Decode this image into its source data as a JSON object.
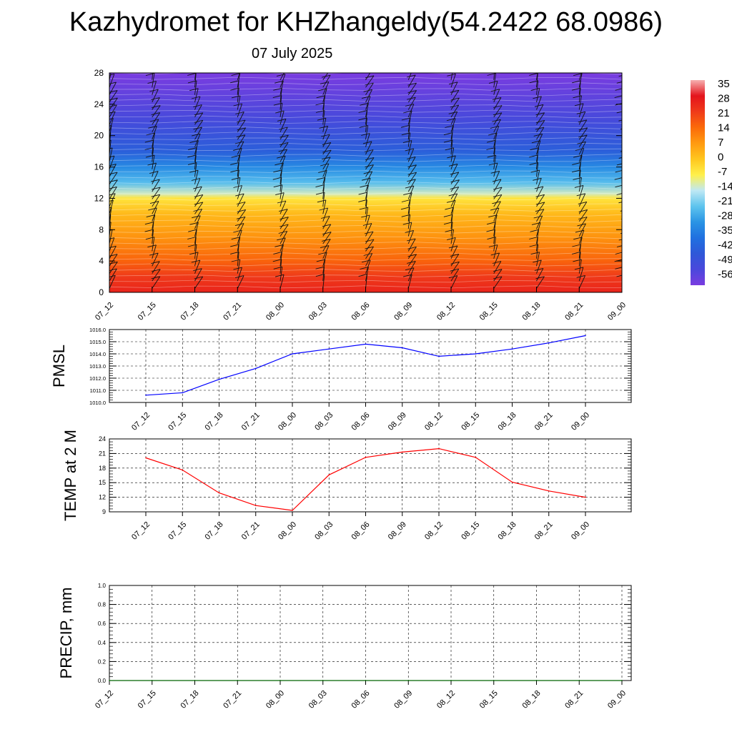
{
  "title": "Kazhydromet for KHZhangeldy(54.2422 68.0986)",
  "subtitle": "07 July 2025",
  "time_labels": [
    "07_12",
    "07_15",
    "07_18",
    "07_21",
    "08_00",
    "08_03",
    "08_06",
    "08_09",
    "08_12",
    "08_15",
    "08_18",
    "08_21",
    "09_00"
  ],
  "colors": {
    "pmsl_line": "#0000ff",
    "temp_line": "#ff0000",
    "precip_line": "#006400",
    "grid": "#000000"
  },
  "chart_data": [
    {
      "type": "heatmap",
      "title": "",
      "ylabel": "",
      "ylim": [
        0,
        28
      ],
      "yticks": [
        "0",
        "4",
        "8",
        "12",
        "16",
        "20",
        "24",
        "28"
      ],
      "categories": [
        "07_12",
        "07_15",
        "07_18",
        "07_21",
        "08_00",
        "08_03",
        "08_06",
        "08_09",
        "08_12",
        "08_15",
        "08_18",
        "08_21",
        "09_00"
      ],
      "colorbar": {
        "labels": [
          "35",
          "28",
          "21",
          "14",
          "7",
          "0",
          "-7",
          "-14",
          "-21",
          "-28",
          "-35",
          "-42",
          "-49",
          "-56"
        ],
        "colors": [
          "#f6b0b0",
          "#e4141c",
          "#ef3a1a",
          "#fb6a0a",
          "#ff9a10",
          "#ffc61e",
          "#fff04a",
          "#bfe8f4",
          "#5ec4ee",
          "#2a94e4",
          "#2070e0",
          "#2f58d8",
          "#4a48dc",
          "#7a3ce0"
        ]
      },
      "profile": [
        {
          "level": 0,
          "value": 25
        },
        {
          "level": 2,
          "value": 21
        },
        {
          "level": 4,
          "value": 15
        },
        {
          "level": 7,
          "value": 8
        },
        {
          "level": 10,
          "value": 2
        },
        {
          "level": 12,
          "value": -5
        },
        {
          "level": 12.6,
          "value": -12
        },
        {
          "level": 14,
          "value": -22
        },
        {
          "level": 16,
          "value": -30
        },
        {
          "level": 18,
          "value": -40
        },
        {
          "level": 22,
          "value": -48
        },
        {
          "level": 28,
          "value": -56
        }
      ]
    },
    {
      "type": "line",
      "ylabel": "PMSL",
      "ylim": [
        1010,
        1016
      ],
      "yticks": [
        "1010.0",
        "1011.0",
        "1012.0",
        "1013.0",
        "1014.0",
        "1015.0",
        "1016.0"
      ],
      "categories": [
        "07_12",
        "07_15",
        "07_18",
        "07_21",
        "08_00",
        "08_03",
        "08_06",
        "08_09",
        "08_12",
        "08_15",
        "08_18",
        "08_21",
        "09_00"
      ],
      "series": [
        {
          "values": [
            1010.6,
            1010.8,
            1011.9,
            1012.8,
            1014.0,
            1014.4,
            1014.8,
            1014.5,
            1013.8,
            1014.0,
            1014.4,
            1014.9,
            1015.5
          ]
        }
      ]
    },
    {
      "type": "line",
      "ylabel": "TEMP at 2 M",
      "ylim": [
        9,
        24
      ],
      "yticks": [
        "9",
        "12",
        "15",
        "18",
        "21",
        "24"
      ],
      "categories": [
        "07_12",
        "07_15",
        "07_18",
        "07_21",
        "08_00",
        "08_03",
        "08_06",
        "08_09",
        "08_12",
        "08_15",
        "08_18",
        "08_21",
        "09_00"
      ],
      "series": [
        {
          "values": [
            20.1,
            17.6,
            12.9,
            10.3,
            9.3,
            16.6,
            20.2,
            21.3,
            22.0,
            20.2,
            15.1,
            13.3,
            12.0
          ]
        }
      ]
    },
    {
      "type": "line",
      "ylabel": "PRECIP, mm",
      "ylim": [
        0,
        1
      ],
      "yticks": [
        "0.0",
        "0.2",
        "0.4",
        "0.6",
        "0.8",
        "1.0"
      ],
      "categories": [
        "07_12",
        "07_15",
        "07_18",
        "07_21",
        "08_00",
        "08_03",
        "08_06",
        "08_09",
        "08_12",
        "08_15",
        "08_18",
        "08_21",
        "09_00"
      ],
      "series": [
        {
          "values": [
            0,
            0,
            0,
            0,
            0,
            0,
            0,
            0,
            0,
            0,
            0,
            0,
            0
          ]
        }
      ]
    }
  ]
}
